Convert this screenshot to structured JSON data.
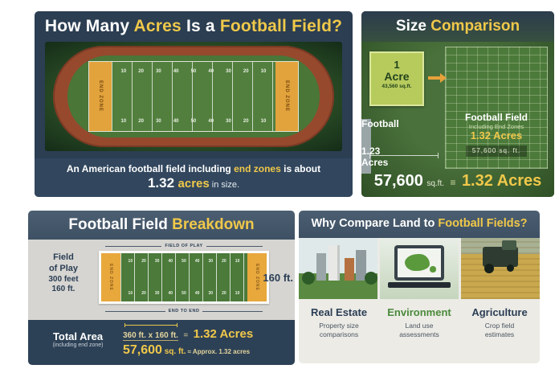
{
  "colors": {
    "accent_yellow": "#f0c84a",
    "navy_panel": "#2b3e52",
    "slate_header": "#46586b",
    "grass_green": "#3c5c33",
    "track_red": "#96492d",
    "endzone_orange": "#e8a83c",
    "acre_square_green": "#b7cb5d",
    "environment_green": "#4a8a3a"
  },
  "panel1": {
    "title": {
      "p1": "How Many ",
      "p2": "Acres",
      "p3": " Is a ",
      "p4": "Football Field?"
    },
    "field": {
      "endzone_left": "END ZONE",
      "endzone_right": "END ZONE",
      "yard_numbers": [
        "10",
        "20",
        "30",
        "40",
        "50",
        "40",
        "30",
        "20",
        "10"
      ]
    },
    "caption": {
      "pre": "An American football field including ",
      "highlight": "end zones",
      "post": " is about",
      "value": "1.32",
      "unit": "acres",
      "suffix": " in size."
    }
  },
  "panel2": {
    "title": {
      "p1": "Size ",
      "p2": "Comparison"
    },
    "acre": {
      "value": "1",
      "unit": "Acre",
      "sqft": "43,560 sq.ft."
    },
    "football": {
      "label": "Football",
      "acres": "1.23 Acres"
    },
    "football_field": {
      "label": "Football Field",
      "sub": "Including End Zones",
      "acres": "1.32 Acres",
      "sqft": "57,600 sq. ft."
    },
    "equation": {
      "value": "57,600",
      "unit": "sq.ft.",
      "eq": "≡",
      "result": "1.32 Acres"
    }
  },
  "panel3": {
    "title": {
      "p1": "Football Field ",
      "p2": "Breakdown"
    },
    "left": {
      "l1": "Field",
      "l2": "of Play",
      "l3": "300 feet",
      "l4": "160 ft."
    },
    "dims": {
      "top": "FIELD OF PLAY",
      "bottom": "END TO END",
      "right": "160 ft."
    },
    "field": {
      "endzone_left": "END ZONE",
      "endzone_right": "END ZONE",
      "yard_numbers": [
        "10",
        "20",
        "30",
        "40",
        "50",
        "40",
        "30",
        "20",
        "10"
      ]
    },
    "footer": {
      "label": "Total Area",
      "sublabel": "(including end zone)",
      "formula": "360 ft. x 160 ft.",
      "eq": "=",
      "result": "1.32 Acres",
      "value": "57,600",
      "unit": " sq. ft.",
      "approx": " ≈ Approx. 1.32 acres"
    }
  },
  "panel4": {
    "title": {
      "p1": "Why Compare Land to ",
      "p2": "Football Fields?"
    },
    "columns": [
      {
        "heading": "Real Estate",
        "desc": "Property size\ncomparisons"
      },
      {
        "heading": "Environment",
        "desc": "Land use\nassessments"
      },
      {
        "heading": "Agriculture",
        "desc": "Crop field\nestimates"
      }
    ]
  }
}
